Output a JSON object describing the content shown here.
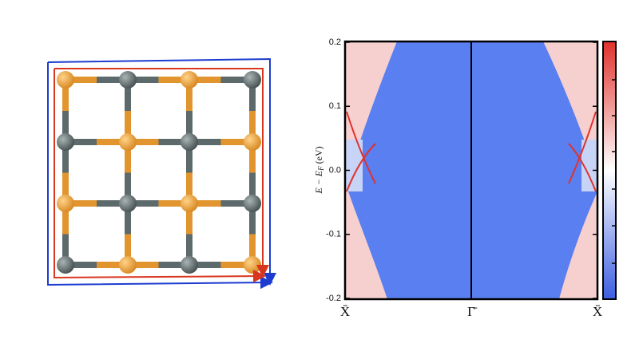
{
  "chart_data": {
    "type": "heatmap",
    "ylabel": {
      "main": "E − E",
      "sub": "F",
      "unit": "(eV)"
    },
    "ylim": [
      -0.2,
      0.2
    ],
    "yticks": [
      -0.2,
      -0.1,
      {
        "value": 0,
        "label": "0.0"
      },
      0.1,
      0.2
    ],
    "categories": [
      "X̄",
      "Γ̄",
      "X̄"
    ]
  }
}
